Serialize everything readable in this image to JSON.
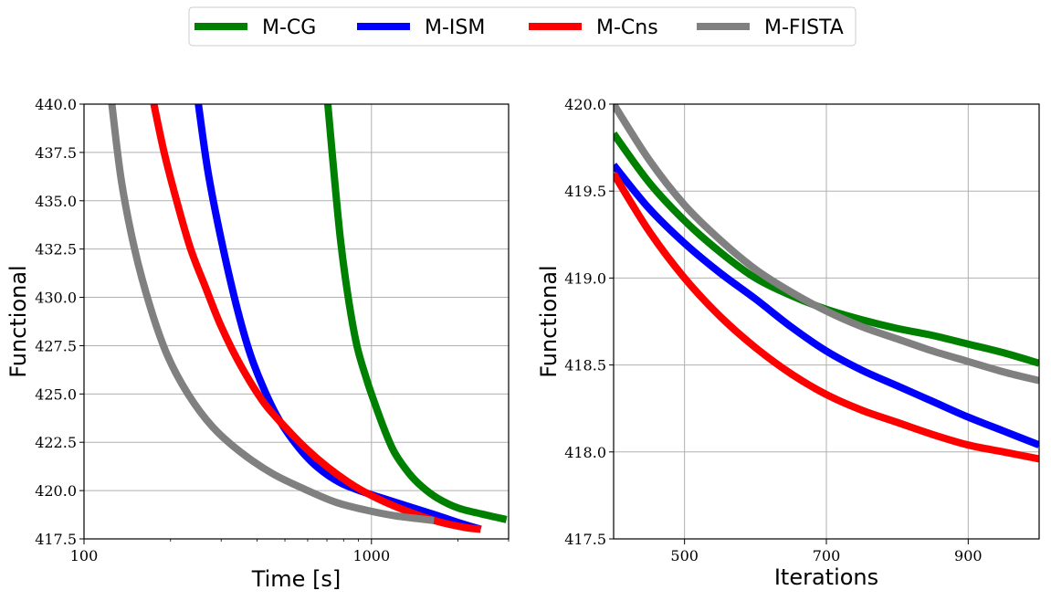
{
  "legend": {
    "entries": [
      {
        "label": "M-CG",
        "color": "#008000"
      },
      {
        "label": "M-ISM",
        "color": "#0000ff"
      },
      {
        "label": "M-Cns",
        "color": "#ff0000"
      },
      {
        "label": "M-FISTA",
        "color": "#808080"
      }
    ]
  },
  "chart_data": [
    {
      "type": "line",
      "xlabel": "Time [s]",
      "ylabel": "Functional",
      "xscale": "log",
      "xlim": [
        100,
        3000
      ],
      "ylim": [
        417.5,
        440.0
      ],
      "xticks": [
        100,
        1000
      ],
      "xtick_labels": [
        "100",
        "1000"
      ],
      "yticks": [
        417.5,
        420.0,
        422.5,
        425.0,
        427.5,
        430.0,
        432.5,
        435.0,
        437.5,
        440.0
      ],
      "ytick_labels": [
        "417.5",
        "420.0",
        "422.5",
        "425.0",
        "427.5",
        "430.0",
        "432.5",
        "435.0",
        "437.5",
        "440.0"
      ],
      "grid": true,
      "series": [
        {
          "name": "M-CG",
          "color": "#008000",
          "x": [
            705,
            740,
            780,
            830,
            890,
            960,
            1000,
            1100,
            1200,
            1350,
            1500,
            1700,
            2000,
            2400,
            2950
          ],
          "y": [
            440.0,
            436.5,
            433.0,
            430.0,
            427.5,
            425.8,
            425.0,
            423.3,
            422.0,
            420.9,
            420.2,
            419.6,
            419.1,
            418.8,
            418.5
          ]
        },
        {
          "name": "M-ISM",
          "color": "#0000ff",
          "x": [
            250,
            270,
            300,
            340,
            380,
            430,
            480,
            560,
            650,
            780,
            950,
            1150,
            1400,
            1700,
            2050,
            2400
          ],
          "y": [
            440.0,
            436.5,
            433.0,
            429.5,
            427.0,
            425.0,
            423.6,
            422.2,
            421.2,
            420.4,
            419.9,
            419.5,
            419.1,
            418.7,
            418.3,
            418.0
          ]
        },
        {
          "name": "M-Cns",
          "color": "#ff0000",
          "x": [
            175,
            190,
            210,
            235,
            265,
            300,
            350,
            420,
            500,
            600,
            720,
            880,
            1080,
            1350,
            1700,
            2100,
            2400
          ],
          "y": [
            440.0,
            437.5,
            435.0,
            432.5,
            430.5,
            428.5,
            426.5,
            424.6,
            423.3,
            422.1,
            421.1,
            420.2,
            419.5,
            418.9,
            418.4,
            418.1,
            418.0
          ]
        },
        {
          "name": "M-FISTA",
          "color": "#808080",
          "x": [
            125,
            135,
            150,
            170,
            195,
            230,
            280,
            350,
            450,
            580,
            750,
            950,
            1200,
            1450,
            1650
          ],
          "y": [
            440.0,
            436.0,
            432.5,
            429.5,
            427.0,
            425.0,
            423.3,
            422.0,
            420.9,
            420.1,
            419.4,
            419.0,
            418.7,
            418.55,
            418.45
          ]
        }
      ]
    },
    {
      "type": "line",
      "xlabel": "Iterations",
      "ylabel": "Functional",
      "xlim": [
        400,
        1000
      ],
      "ylim": [
        417.5,
        420.0
      ],
      "xticks": [
        500,
        700,
        900
      ],
      "xtick_labels": [
        "500",
        "700",
        "900"
      ],
      "yticks": [
        417.5,
        418.0,
        418.5,
        419.0,
        419.5,
        420.0
      ],
      "ytick_labels": [
        "417.5",
        "418.0",
        "418.5",
        "419.0",
        "419.5",
        "420.0"
      ],
      "grid": true,
      "series": [
        {
          "name": "M-CG",
          "color": "#008000",
          "x": [
            400,
            450,
            500,
            550,
            600,
            650,
            700,
            750,
            800,
            850,
            900,
            950,
            1000
          ],
          "y": [
            419.83,
            419.55,
            419.33,
            419.15,
            419.0,
            418.9,
            418.82,
            418.76,
            418.71,
            418.67,
            418.62,
            418.57,
            418.51
          ]
        },
        {
          "name": "M-ISM",
          "color": "#0000ff",
          "x": [
            400,
            450,
            500,
            550,
            600,
            650,
            700,
            750,
            800,
            850,
            900,
            950,
            1000
          ],
          "y": [
            419.65,
            419.4,
            419.2,
            419.03,
            418.88,
            418.72,
            418.58,
            418.47,
            418.38,
            418.29,
            418.2,
            418.12,
            418.04
          ]
        },
        {
          "name": "M-Cns",
          "color": "#ff0000",
          "x": [
            400,
            450,
            500,
            550,
            600,
            650,
            700,
            750,
            800,
            850,
            900,
            950,
            1000
          ],
          "y": [
            419.6,
            419.27,
            419.0,
            418.78,
            418.6,
            418.45,
            418.33,
            418.24,
            418.17,
            418.1,
            418.04,
            418.0,
            417.96
          ]
        },
        {
          "name": "M-FISTA",
          "color": "#808080",
          "x": [
            400,
            450,
            500,
            550,
            600,
            650,
            700,
            750,
            800,
            850,
            900,
            950,
            1000
          ],
          "y": [
            420.0,
            419.68,
            419.42,
            419.22,
            419.05,
            418.92,
            418.81,
            418.72,
            418.65,
            418.58,
            418.52,
            418.46,
            418.41
          ]
        }
      ]
    }
  ]
}
